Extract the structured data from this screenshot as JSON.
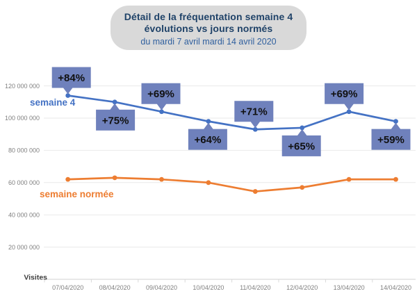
{
  "header": {
    "title_line1": "Détail de la fréquentation semaine 4",
    "title_line2": "évolutions vs jours normés",
    "subtitle": "du mardi 7 avril mardi 14 avril 2020",
    "bg_color": "#d9d9d9",
    "title_color": "#1f4268",
    "subtitle_color": "#2f5f9e"
  },
  "chart_data": {
    "type": "line",
    "title": "Détail de la fréquentation semaine 4 évolutions vs jours normés",
    "subtitle": "du mardi 7 avril mardi 14 avril 2020",
    "categories": [
      "07/04/2020",
      "08/04/2020",
      "09/04/2020",
      "10/04/2020",
      "11/04/2020",
      "12/04/2020",
      "13/04/2020",
      "14/04/2020"
    ],
    "series": [
      {
        "name": "semaine 4",
        "color": "#4472c4",
        "values": [
          114000000,
          110000000,
          104000000,
          98000000,
          93000000,
          94000000,
          104000000,
          98000000
        ]
      },
      {
        "name": "semaine normée",
        "color": "#ed7d31",
        "values": [
          62000000,
          63000000,
          62000000,
          60000000,
          54500000,
          57000000,
          62000000,
          62000000
        ]
      }
    ],
    "annotations": [
      {
        "label": "+84%",
        "index": 0,
        "series": 0,
        "side": "above",
        "dx": 5
      },
      {
        "label": "+75%",
        "index": 1,
        "series": 0,
        "side": "below",
        "dx": 1
      },
      {
        "label": "+69%",
        "index": 2,
        "series": 0,
        "side": "above",
        "dx": -1
      },
      {
        "label": "+64%",
        "index": 3,
        "series": 0,
        "side": "below",
        "dx": -1
      },
      {
        "label": "+71%",
        "index": 4,
        "series": 0,
        "side": "above",
        "dx": -2
      },
      {
        "label": "+65%",
        "index": 5,
        "series": 0,
        "side": "below",
        "dx": -1
      },
      {
        "label": "+69%",
        "index": 6,
        "series": 0,
        "side": "above",
        "dx": -7
      },
      {
        "label": "+59%",
        "index": 7,
        "series": 0,
        "side": "below",
        "dx": -7
      }
    ],
    "y_ticks": [
      {
        "value": 120000000,
        "label": "120 000 000"
      },
      {
        "value": 100000000,
        "label": "100 000 000"
      },
      {
        "value": 80000000,
        "label": "80 000 000"
      },
      {
        "value": 60000000,
        "label": "60 000 000"
      },
      {
        "value": 40000000,
        "label": "40 000 000"
      },
      {
        "value": 20000000,
        "label": "20 000 000"
      }
    ],
    "axis_corner_label": "Visites",
    "ylabel": "Visites",
    "xlabel": "",
    "ylim": [
      0,
      140000000
    ],
    "grid": true,
    "legend_position": "inline-labels",
    "colors": {
      "annotation_bg": "#6f81bc",
      "annotation_text": "#111111",
      "gridline": "#e9e9e9",
      "axis_line": "#d9d9d9",
      "tick_label": "#7f7f7f",
      "corner_label": "#3f3f3f"
    }
  }
}
